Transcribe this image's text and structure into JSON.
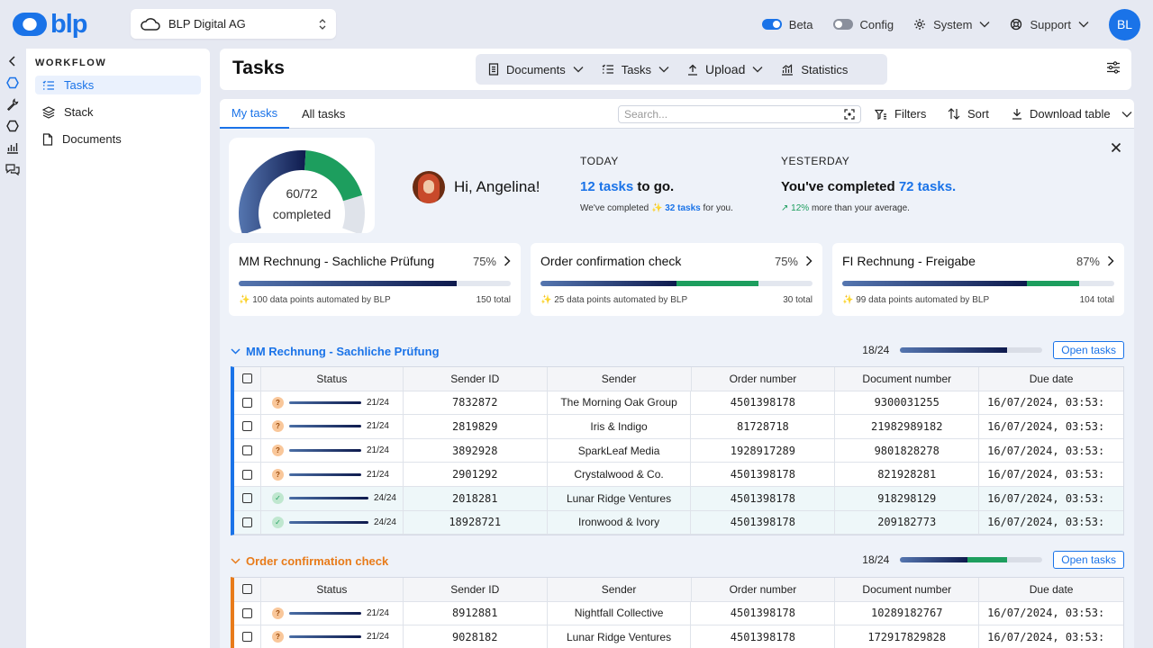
{
  "brand": {
    "logo_text": "blp"
  },
  "org_select": {
    "value": "BLP Digital AG"
  },
  "topbar": {
    "beta_label": "Beta",
    "config_label": "Config",
    "system_label": "System",
    "support_label": "Support",
    "avatar_initials": "BL",
    "beta_on": true,
    "config_on": false
  },
  "sidebar": {
    "section_title": "WORKFLOW",
    "items": [
      {
        "label": "Tasks",
        "icon": "list-check-icon",
        "active": true
      },
      {
        "label": "Stack",
        "icon": "layers-icon",
        "active": false
      },
      {
        "label": "Documents",
        "icon": "document-icon",
        "active": false
      }
    ]
  },
  "header": {
    "title": "Tasks",
    "nav": [
      {
        "label": "Documents",
        "icon": "document-icon"
      },
      {
        "label": "Tasks",
        "icon": "list-check-icon"
      },
      {
        "label": "Upload",
        "icon": "upload-icon"
      },
      {
        "label": "Statistics",
        "icon": "chart-icon"
      }
    ]
  },
  "tabs": {
    "my_tasks": "My tasks",
    "all_tasks": "All tasks"
  },
  "toolbar": {
    "search_placeholder": "Search...",
    "filters": "Filters",
    "sort": "Sort",
    "download": "Download table"
  },
  "welcome": {
    "gauge_value": "60/72",
    "gauge_label": "completed",
    "gauge_done": 60,
    "gauge_total": 72,
    "greeting": "Hi, Angelina!",
    "today_label": "TODAY",
    "today_count": "12 tasks",
    "today_suffix": "to go.",
    "today_sub_prefix": "We've completed",
    "today_sub_count": "32 tasks",
    "today_sub_suffix": "for you.",
    "yesterday_label": "YESTERDAY",
    "yesterday_prefix": "You've completed",
    "yesterday_count": "72 tasks.",
    "yesterday_sub_pct": "12%",
    "yesterday_sub_suffix": "more than your average."
  },
  "workflows": [
    {
      "title": "MM Rechnung - Sachliche Prüfung",
      "pct": "75%",
      "automated": "100 data points automated by BLP",
      "total": "150 total",
      "dark": 0.8,
      "green": 0.0
    },
    {
      "title": "Order confirmation check",
      "pct": "75%",
      "automated": "25 data points automated by BLP",
      "total": "30 total",
      "dark": 0.5,
      "green": 0.3
    },
    {
      "title": "FI Rechnung - Freigabe",
      "pct": "87%",
      "automated": "99 data points automated by BLP",
      "total": "104 total",
      "dark": 0.68,
      "green": 0.19
    }
  ],
  "columns": [
    "Status",
    "Sender ID",
    "Sender",
    "Order number",
    "Document number",
    "Due date"
  ],
  "groups": [
    {
      "title": "MM Rechnung - Sachliche Prüfung",
      "count": "18/24",
      "open_label": "Open tasks",
      "color": "#1a73e8",
      "dark": 1.0,
      "green": 0.0,
      "rows": [
        {
          "status": "21/24",
          "done": false,
          "sender_id": "7832872",
          "sender": "The Morning Oak Group",
          "order": "4501398178",
          "doc": "9300031255",
          "due": "16/07/2024, 03:53:"
        },
        {
          "status": "21/24",
          "done": false,
          "sender_id": "2819829",
          "sender": "Iris & Indigo",
          "order": "81728718",
          "doc": "21982989182",
          "due": "16/07/2024, 03:53:"
        },
        {
          "status": "21/24",
          "done": false,
          "sender_id": "3892928",
          "sender": "SparkLeaf Media",
          "order": "1928917289",
          "doc": "9801828278",
          "due": "16/07/2024, 03:53:"
        },
        {
          "status": "21/24",
          "done": false,
          "sender_id": "2901292",
          "sender": "Crystalwood & Co.",
          "order": "4501398178",
          "doc": "821928281",
          "due": "16/07/2024, 03:53:"
        },
        {
          "status": "24/24",
          "done": true,
          "sender_id": "2018281",
          "sender": "Lunar Ridge Ventures",
          "order": "4501398178",
          "doc": "918298129",
          "due": "16/07/2024, 03:53:"
        },
        {
          "status": "24/24",
          "done": true,
          "sender_id": "18928721",
          "sender": "Ironwood & Ivory",
          "order": "4501398178",
          "doc": "209182773",
          "due": "16/07/2024, 03:53:"
        }
      ]
    },
    {
      "title": "Order confirmation check",
      "count": "18/24",
      "open_label": "Open tasks",
      "color": "#e87b1a",
      "dark": 0.63,
      "green": 0.37,
      "rows": [
        {
          "status": "21/24",
          "done": false,
          "sender_id": "8912881",
          "sender": "Nightfall Collective",
          "order": "4501398178",
          "doc": "10289182767",
          "due": "16/07/2024, 03:53:"
        },
        {
          "status": "21/24",
          "done": false,
          "sender_id": "9028182",
          "sender": "Lunar Ridge Ventures",
          "order": "4501398178",
          "doc": "1729178298​28",
          "due": "16/07/2024, 03:53:"
        }
      ]
    }
  ],
  "colors": {
    "accent": "#1a73e8",
    "green": "#1d9e5e",
    "orange": "#e87b1a",
    "navy": "#0e1a4d"
  }
}
